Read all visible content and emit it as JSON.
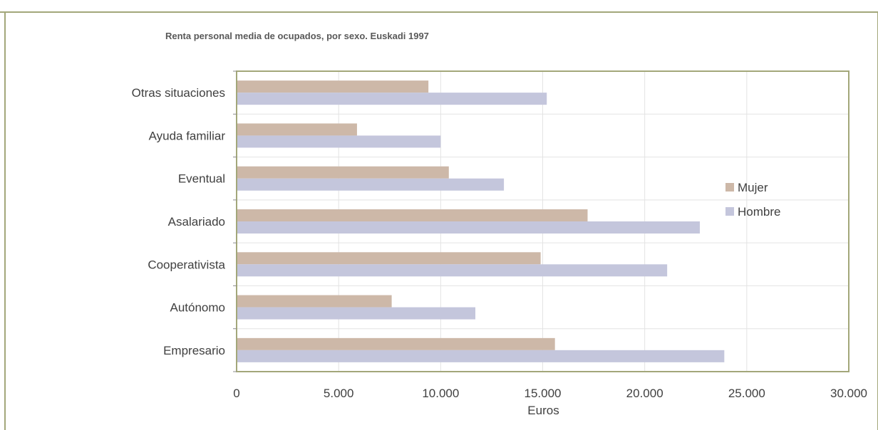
{
  "chart_data": {
    "type": "bar",
    "orientation": "horizontal",
    "title": "Renta personal media de ocupados, por sexo. Euskadi 1997",
    "xlabel": "Euros",
    "ylabel": "",
    "xlim": [
      0,
      30000
    ],
    "x_ticks": [
      0,
      5000,
      10000,
      15000,
      20000,
      25000,
      30000
    ],
    "x_tick_labels": [
      "0",
      "5.000",
      "10.000",
      "15.000",
      "20.000",
      "25.000",
      "30.000"
    ],
    "grid": true,
    "legend_position": "right",
    "categories": [
      "Otras situaciones",
      "Ayuda familiar",
      "Eventual",
      "Asalariado",
      "Cooperativista",
      "Autónomo",
      "Empresario"
    ],
    "series": [
      {
        "name": "Mujer",
        "color": "#cdb8a8",
        "values": [
          9400,
          5900,
          10400,
          17200,
          14900,
          7600,
          15600
        ]
      },
      {
        "name": "Hombre",
        "color": "#c4c6dc",
        "values": [
          15200,
          10000,
          13100,
          22700,
          21100,
          11700,
          23900
        ]
      }
    ]
  }
}
